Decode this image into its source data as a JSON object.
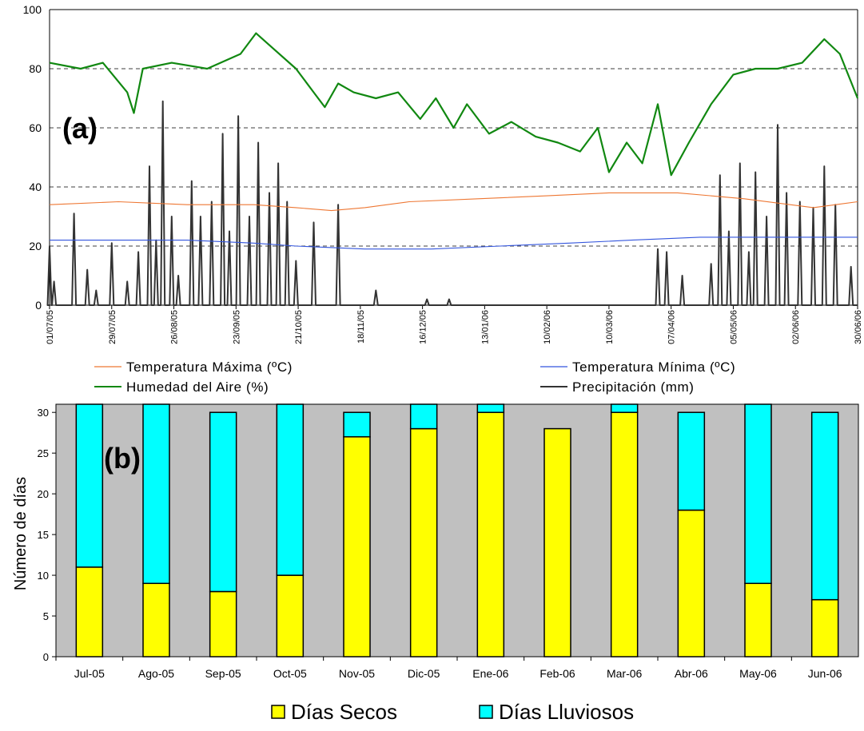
{
  "panel_a": {
    "label": "(a)",
    "legend": {
      "tmax": "Temperatura Máxima (ºC)",
      "tmin": "Temperatura Mínima (ºC)",
      "humidity": "Humedad del Aire (%)",
      "precip": "Precipitación (mm)"
    }
  },
  "panel_b": {
    "label": "(b)",
    "legend": {
      "dry": "Días Secos",
      "rainy": "Días Lluviosos"
    }
  },
  "chart_data": [
    {
      "type": "line",
      "ylim": [
        0,
        100
      ],
      "yticks": [
        0,
        20,
        40,
        60,
        80,
        100
      ],
      "grid": "horizontal dashed",
      "legend_position": "bottom",
      "x_start": "2005-07-01",
      "x_end": "2006-06-30",
      "xtick_labels": [
        "01/07/05",
        "29/07/05",
        "26/08/05",
        "23/09/05",
        "21/10/05",
        "18/11/05",
        "16/12/05",
        "13/01/06",
        "10/02/06",
        "10/03/06",
        "07/04/06",
        "05/05/06",
        "02/06/06",
        "30/06/06"
      ],
      "colors": {
        "tmax": "#ee7733",
        "tmin": "#3355dd",
        "humidity": "#118811",
        "precip": "#333333"
      },
      "series": [
        {
          "name": "Humedad del Aire (%)",
          "key": "humidity",
          "points": [
            [
              "2005-07-01",
              82
            ],
            [
              "2005-07-15",
              80
            ],
            [
              "2005-07-25",
              82
            ],
            [
              "2005-08-05",
              72
            ],
            [
              "2005-08-08",
              65
            ],
            [
              "2005-08-12",
              80
            ],
            [
              "2005-08-25",
              82
            ],
            [
              "2005-09-10",
              80
            ],
            [
              "2005-09-25",
              85
            ],
            [
              "2005-10-02",
              92
            ],
            [
              "2005-10-08",
              88
            ],
            [
              "2005-10-20",
              80
            ],
            [
              "2005-10-28",
              72
            ],
            [
              "2005-11-02",
              67
            ],
            [
              "2005-11-08",
              75
            ],
            [
              "2005-11-15",
              72
            ],
            [
              "2005-11-25",
              70
            ],
            [
              "2005-12-05",
              72
            ],
            [
              "2005-12-15",
              63
            ],
            [
              "2005-12-22",
              70
            ],
            [
              "2005-12-30",
              60
            ],
            [
              "2006-01-05",
              68
            ],
            [
              "2006-01-15",
              58
            ],
            [
              "2006-01-25",
              62
            ],
            [
              "2006-02-05",
              57
            ],
            [
              "2006-02-15",
              55
            ],
            [
              "2006-02-25",
              52
            ],
            [
              "2006-03-05",
              60
            ],
            [
              "2006-03-10",
              45
            ],
            [
              "2006-03-18",
              55
            ],
            [
              "2006-03-25",
              48
            ],
            [
              "2006-04-01",
              68
            ],
            [
              "2006-04-07",
              44
            ],
            [
              "2006-04-15",
              55
            ],
            [
              "2006-04-25",
              68
            ],
            [
              "2006-05-05",
              78
            ],
            [
              "2006-05-15",
              80
            ],
            [
              "2006-05-25",
              80
            ],
            [
              "2006-06-05",
              82
            ],
            [
              "2006-06-15",
              90
            ],
            [
              "2006-06-22",
              85
            ],
            [
              "2006-06-30",
              70
            ]
          ]
        },
        {
          "name": "Temperatura Máxima (ºC)",
          "key": "tmax",
          "points": [
            [
              "2005-07-01",
              34
            ],
            [
              "2005-08-01",
              35
            ],
            [
              "2005-09-01",
              34
            ],
            [
              "2005-10-01",
              34
            ],
            [
              "2005-10-20",
              33
            ],
            [
              "2005-11-05",
              32
            ],
            [
              "2005-11-20",
              33
            ],
            [
              "2005-12-10",
              35
            ],
            [
              "2006-01-10",
              36
            ],
            [
              "2006-02-10",
              37
            ],
            [
              "2006-03-10",
              38
            ],
            [
              "2006-04-10",
              38
            ],
            [
              "2006-05-10",
              36
            ],
            [
              "2006-06-10",
              33
            ],
            [
              "2006-06-30",
              35
            ]
          ]
        },
        {
          "name": "Temperatura Mínima (ºC)",
          "key": "tmin",
          "points": [
            [
              "2005-07-01",
              22
            ],
            [
              "2005-08-01",
              22
            ],
            [
              "2005-09-01",
              22
            ],
            [
              "2005-10-01",
              21
            ],
            [
              "2005-10-20",
              20
            ],
            [
              "2005-11-20",
              19
            ],
            [
              "2005-12-20",
              19
            ],
            [
              "2006-01-20",
              20
            ],
            [
              "2006-02-20",
              21
            ],
            [
              "2006-03-20",
              22
            ],
            [
              "2006-04-20",
              23
            ],
            [
              "2006-05-20",
              23
            ],
            [
              "2006-06-30",
              23
            ]
          ]
        },
        {
          "name": "Precipitación (mm)",
          "key": "precip",
          "points": [
            [
              "2005-07-01",
              20
            ],
            [
              "2005-07-03",
              8
            ],
            [
              "2005-07-08",
              0
            ],
            [
              "2005-07-12",
              31
            ],
            [
              "2005-07-18",
              12
            ],
            [
              "2005-07-22",
              5
            ],
            [
              "2005-07-29",
              21
            ],
            [
              "2005-08-05",
              8
            ],
            [
              "2005-08-10",
              18
            ],
            [
              "2005-08-15",
              47
            ],
            [
              "2005-08-18",
              22
            ],
            [
              "2005-08-21",
              69
            ],
            [
              "2005-08-25",
              30
            ],
            [
              "2005-08-28",
              10
            ],
            [
              "2005-09-03",
              42
            ],
            [
              "2005-09-07",
              30
            ],
            [
              "2005-09-12",
              35
            ],
            [
              "2005-09-17",
              58
            ],
            [
              "2005-09-20",
              25
            ],
            [
              "2005-09-24",
              64
            ],
            [
              "2005-09-29",
              30
            ],
            [
              "2005-10-03",
              55
            ],
            [
              "2005-10-08",
              38
            ],
            [
              "2005-10-12",
              48
            ],
            [
              "2005-10-16",
              35
            ],
            [
              "2005-10-20",
              15
            ],
            [
              "2005-10-28",
              28
            ],
            [
              "2005-11-08",
              34
            ],
            [
              "2005-11-25",
              5
            ],
            [
              "2005-12-18",
              2
            ],
            [
              "2005-12-28",
              2
            ],
            [
              "2006-04-01",
              19
            ],
            [
              "2006-04-05",
              18
            ],
            [
              "2006-04-12",
              10
            ],
            [
              "2006-04-25",
              14
            ],
            [
              "2006-04-29",
              44
            ],
            [
              "2006-05-03",
              25
            ],
            [
              "2006-05-08",
              48
            ],
            [
              "2006-05-12",
              18
            ],
            [
              "2006-05-15",
              45
            ],
            [
              "2006-05-20",
              30
            ],
            [
              "2006-05-25",
              61
            ],
            [
              "2006-05-29",
              38
            ],
            [
              "2006-06-04",
              35
            ],
            [
              "2006-06-10",
              33
            ],
            [
              "2006-06-15",
              47
            ],
            [
              "2006-06-20",
              34
            ],
            [
              "2006-06-27",
              13
            ]
          ]
        }
      ]
    },
    {
      "type": "bar",
      "stacked": true,
      "ylabel": "Número de días",
      "ylim": [
        0,
        31
      ],
      "yticks": [
        0,
        5,
        10,
        15,
        20,
        25,
        30
      ],
      "grid": "none",
      "legend_position": "bottom",
      "categories": [
        "Jul-05",
        "Ago-05",
        "Sep-05",
        "Oct-05",
        "Nov-05",
        "Dic-05",
        "Ene-06",
        "Feb-06",
        "Mar-06",
        "Abr-06",
        "May-06",
        "Jun-06"
      ],
      "colors": {
        "dry": "#ffff00",
        "rainy": "#00ffff",
        "plot_bg": "#c0c0c0"
      },
      "series": [
        {
          "name": "Días Secos",
          "key": "dry",
          "values": [
            11,
            9,
            8,
            10,
            27,
            28,
            30,
            28,
            30,
            18,
            9,
            7
          ]
        },
        {
          "name": "Días Lluviosos",
          "key": "rainy",
          "values": [
            20,
            22,
            22,
            21,
            3,
            3,
            1,
            0,
            1,
            12,
            22,
            23
          ]
        }
      ]
    }
  ]
}
